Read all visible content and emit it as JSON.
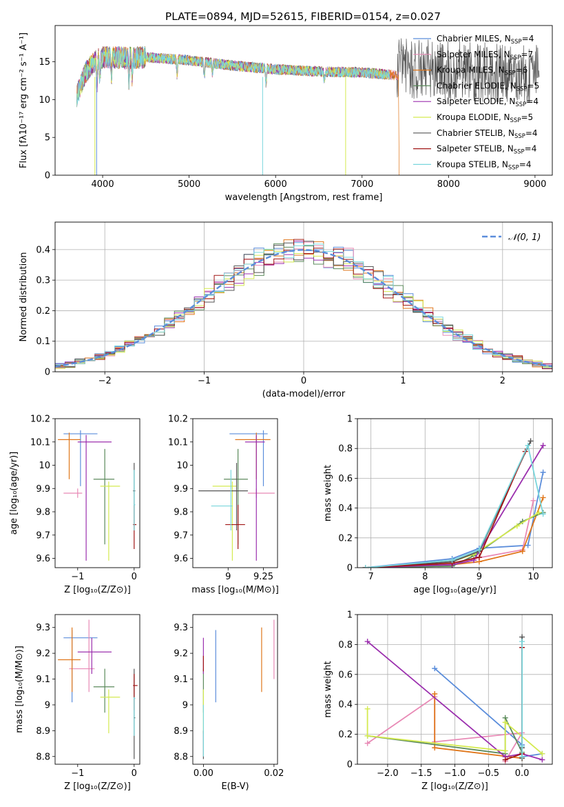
{
  "figure": {
    "title": "PLATE=0894, MJD=52615, FIBERID=0154, z=0.027"
  },
  "series_styles": [
    {
      "name": "Chabrier MILES",
      "nssp": "4",
      "color": "#5b8ddb"
    },
    {
      "name": "Salpeter MILES",
      "nssp": "7",
      "color": "#e889b5"
    },
    {
      "name": "Kroupa MILES",
      "nssp": "6",
      "color": "#e0761a"
    },
    {
      "name": "Chabrier ELODIE",
      "nssp": "5",
      "color": "#5b8a5b"
    },
    {
      "name": "Salpeter ELODIE",
      "nssp": "4",
      "color": "#9b2fae"
    },
    {
      "name": "Kroupa ELODIE",
      "nssp": "5",
      "color": "#d4ea4f"
    },
    {
      "name": "Chabrier STELIB",
      "nssp": "4",
      "color": "#555555"
    },
    {
      "name": "Salpeter STELIB",
      "nssp": "4",
      "color": "#a01515"
    },
    {
      "name": "Kroupa STELIB",
      "nssp": "4",
      "color": "#79d6dc"
    }
  ],
  "chart_data": [
    {
      "id": "spectrum",
      "type": "line",
      "xlabel": "wavelength [Angstrom, rest frame]",
      "ylabel": "Flux [fλ10⁻¹⁷ erg cm⁻² s⁻¹ A⁻¹]",
      "xlim": [
        3450,
        9200
      ],
      "ylim": [
        0,
        19.8
      ],
      "xticks": [
        4000,
        5000,
        6000,
        7000,
        8000,
        9000
      ],
      "yticks": [
        0,
        5,
        10,
        15
      ],
      "legend_position": "top-right",
      "continuum": {
        "x": [
          3700,
          3800,
          3900,
          4000,
          4100,
          4300,
          4500,
          5000,
          5500,
          6000,
          6500,
          7000,
          7400
        ],
        "y": [
          10.5,
          13.5,
          15.0,
          15.6,
          15.6,
          15.5,
          15.6,
          15.2,
          14.5,
          14.0,
          13.7,
          13.6,
          13.2
        ]
      }
    },
    {
      "id": "residuals",
      "type": "histogram",
      "xlabel": "(data-model)/error",
      "ylabel": "Normed distribution",
      "xlim": [
        -2.5,
        2.5
      ],
      "ylim": [
        0,
        0.49
      ],
      "xticks": [
        -2,
        -1,
        0,
        1,
        2
      ],
      "yticks": [
        0,
        0.1,
        0.2,
        0.3,
        0.4
      ],
      "grid": true,
      "bin_width": 0.1,
      "reference_curve": {
        "name": "𝒩(0, 1)",
        "style": "dashed",
        "color": "#5b8ddb",
        "mean": 0,
        "sigma": 1
      },
      "legend_position": "top-right"
    },
    {
      "id": "age-vs-Z",
      "type": "errorbar",
      "xlabel": "Z [log₁₀(Z/Z⊙)]",
      "ylabel": "age  [log₁₀(age/yr)]",
      "xlim": [
        -1.4,
        0.1
      ],
      "ylim": [
        9.56,
        10.2
      ],
      "xticks": [
        -1,
        0
      ],
      "yticks": [
        9.6,
        9.7,
        9.8,
        9.9,
        10.0,
        10.1,
        10.2
      ],
      "points": [
        {
          "s": 0,
          "x": -0.95,
          "xe": [
            -1.25,
            -0.65
          ],
          "y": 10.135,
          "ye": [
            9.91,
            10.15
          ]
        },
        {
          "s": 1,
          "x": -1.0,
          "xe": [
            -1.25,
            -0.92
          ],
          "y": 9.88,
          "ye": [
            9.86,
            9.9
          ]
        },
        {
          "s": 2,
          "x": -1.15,
          "xe": [
            -1.35,
            -0.95
          ],
          "y": 10.11,
          "ye": [
            9.94,
            10.14
          ]
        },
        {
          "s": 3,
          "x": -0.52,
          "xe": [
            -0.72,
            -0.35
          ],
          "y": 9.94,
          "ye": [
            9.66,
            10.07
          ]
        },
        {
          "s": 4,
          "x": -0.85,
          "xe": [
            -1.0,
            -0.4
          ],
          "y": 10.1,
          "ye": [
            9.59,
            10.13
          ]
        },
        {
          "s": 5,
          "x": -0.45,
          "xe": [
            -0.6,
            -0.25
          ],
          "y": 9.91,
          "ye": [
            9.59,
            9.93
          ]
        },
        {
          "s": 6,
          "x": 0.0,
          "xe": [
            -0.02,
            0.02
          ],
          "y": 9.89,
          "ye": [
            9.72,
            10.01
          ]
        },
        {
          "s": 7,
          "x": 0.0,
          "xe": [
            -0.02,
            0.04
          ],
          "y": 9.745,
          "ye": [
            9.64,
            9.83
          ]
        },
        {
          "s": 8,
          "x": 0.0,
          "xe": [
            -0.01,
            0.02
          ],
          "y": 9.83,
          "ye": [
            9.72,
            9.98
          ]
        }
      ]
    },
    {
      "id": "age-vs-mass",
      "type": "errorbar",
      "xlabel": "mass [log₁₀(M/M⊙)]",
      "ylabel": "",
      "xlim": [
        8.75,
        9.35
      ],
      "ylim": [
        9.56,
        10.2
      ],
      "xticks": [
        9.0,
        9.25
      ],
      "yticks": [
        9.6,
        9.7,
        9.8,
        9.9,
        10.0,
        10.1,
        10.2
      ],
      "points": [
        {
          "s": 0,
          "x": 9.25,
          "xe": [
            9.01,
            9.28
          ],
          "y": 10.135,
          "ye": [
            9.91,
            10.15
          ]
        },
        {
          "s": 1,
          "x": 9.2,
          "xe": [
            9.14,
            9.33
          ],
          "y": 9.88,
          "ye": [
            9.86,
            9.9
          ]
        },
        {
          "s": 2,
          "x": 9.2,
          "xe": [
            9.05,
            9.3
          ],
          "y": 10.11,
          "ye": [
            9.94,
            10.14
          ]
        },
        {
          "s": 3,
          "x": 9.07,
          "xe": [
            8.97,
            9.14
          ],
          "y": 9.94,
          "ye": [
            9.66,
            10.07
          ]
        },
        {
          "s": 4,
          "x": 9.2,
          "xe": [
            9.12,
            9.26
          ],
          "y": 10.1,
          "ye": [
            9.59,
            10.13
          ]
        },
        {
          "s": 5,
          "x": 9.03,
          "xe": [
            8.89,
            9.06
          ],
          "y": 9.91,
          "ye": [
            9.59,
            9.93
          ]
        },
        {
          "s": 6,
          "x": 9.06,
          "xe": [
            8.79,
            9.14
          ],
          "y": 9.89,
          "ye": [
            9.72,
            10.01
          ]
        },
        {
          "s": 7,
          "x": 9.07,
          "xe": [
            8.98,
            9.12
          ],
          "y": 9.745,
          "ye": [
            9.64,
            9.83
          ]
        },
        {
          "s": 8,
          "x": 9.02,
          "xe": [
            8.88,
            9.03
          ],
          "y": 9.825,
          "ye": [
            9.72,
            9.98
          ]
        }
      ]
    },
    {
      "id": "weight-vs-age",
      "type": "line",
      "xlabel": "age  [log₁₀(age/yr)]",
      "ylabel": "mass weight",
      "xlim": [
        6.75,
        10.35
      ],
      "ylim": [
        0,
        1.0
      ],
      "xticks": [
        7,
        8,
        9,
        10
      ],
      "yticks": [
        0,
        0.2,
        0.4,
        0.6,
        0.8,
        1.0
      ],
      "grid": true,
      "series": [
        {
          "s": 0,
          "x": [
            6.9,
            8.5,
            9.0,
            9.9,
            10.18
          ],
          "y": [
            0.0,
            0.06,
            0.13,
            0.15,
            0.64
          ]
        },
        {
          "s": 1,
          "x": [
            6.9,
            8.5,
            8.9,
            9.8,
            10.0
          ],
          "y": [
            0.0,
            0.02,
            0.06,
            0.12,
            0.45
          ]
        },
        {
          "s": 2,
          "x": [
            6.9,
            8.5,
            9.0,
            9.8,
            10.18
          ],
          "y": [
            0.0,
            0.02,
            0.04,
            0.11,
            0.47
          ]
        },
        {
          "s": 3,
          "x": [
            6.9,
            8.5,
            8.9,
            9.8,
            10.18
          ],
          "y": [
            0.0,
            0.01,
            0.08,
            0.31,
            0.37
          ]
        },
        {
          "s": 4,
          "x": [
            6.9,
            8.5,
            8.9,
            10.18
          ],
          "y": [
            0.0,
            0.02,
            0.05,
            0.82
          ]
        },
        {
          "s": 5,
          "x": [
            6.9,
            8.5,
            8.9,
            9.7,
            10.1
          ],
          "y": [
            0.0,
            0.04,
            0.09,
            0.28,
            0.37
          ]
        },
        {
          "s": 6,
          "x": [
            6.9,
            8.5,
            9.0,
            9.95
          ],
          "y": [
            0.0,
            0.04,
            0.11,
            0.85
          ]
        },
        {
          "s": 7,
          "x": [
            6.9,
            8.5,
            9.0,
            9.85
          ],
          "y": [
            0.0,
            0.03,
            0.07,
            0.78
          ]
        },
        {
          "s": 8,
          "x": [
            6.9,
            8.5,
            9.0,
            9.9,
            10.18
          ],
          "y": [
            0.0,
            0.05,
            0.12,
            0.82,
            0.36
          ]
        }
      ]
    },
    {
      "id": "mass-vs-Z",
      "type": "errorbar",
      "xlabel": "Z [log₁₀(Z/Z⊙)]",
      "ylabel": "mass [log₁₀(M/M⊙)]",
      "xlim": [
        -1.4,
        0.1
      ],
      "ylim": [
        8.77,
        9.35
      ],
      "xticks": [
        -1,
        0
      ],
      "yticks": [
        8.8,
        8.9,
        9.0,
        9.1,
        9.2,
        9.3
      ],
      "points": [
        {
          "s": 0,
          "x": -1.1,
          "xe": [
            -1.25,
            -0.65
          ],
          "y": 9.26,
          "ye": [
            9.01,
            9.29
          ]
        },
        {
          "s": 1,
          "x": -0.8,
          "xe": [
            -1.15,
            -0.7
          ],
          "y": 9.14,
          "ye": [
            9.05,
            9.33
          ]
        },
        {
          "s": 2,
          "x": -1.1,
          "xe": [
            -1.35,
            -0.95
          ],
          "y": 9.175,
          "ye": [
            9.05,
            9.3
          ]
        },
        {
          "s": 3,
          "x": -0.52,
          "xe": [
            -0.72,
            -0.35
          ],
          "y": 9.07,
          "ye": [
            8.97,
            9.14
          ]
        },
        {
          "s": 4,
          "x": -0.75,
          "xe": [
            -1.0,
            -0.4
          ],
          "y": 9.205,
          "ye": [
            9.12,
            9.26
          ]
        },
        {
          "s": 5,
          "x": -0.45,
          "xe": [
            -0.6,
            -0.25
          ],
          "y": 9.03,
          "ye": [
            8.89,
            9.06
          ]
        },
        {
          "s": 6,
          "x": 0.0,
          "xe": [
            -0.01,
            0.02
          ],
          "y": 8.95,
          "ye": [
            8.79,
            9.14
          ]
        },
        {
          "s": 7,
          "x": 0.0,
          "xe": [
            -0.02,
            0.06
          ],
          "y": 9.075,
          "ye": [
            8.98,
            9.12
          ]
        },
        {
          "s": 8,
          "x": 0.0,
          "xe": [
            -0.01,
            0.02
          ],
          "y": 9.025,
          "ye": [
            8.88,
            9.03
          ]
        }
      ]
    },
    {
      "id": "mass-vs-ebv",
      "type": "errorbar",
      "xlabel": "E(B-V)",
      "ylabel": "",
      "xlim": [
        -0.003,
        0.021
      ],
      "ylim": [
        8.77,
        9.35
      ],
      "xticks": [
        0.0,
        0.02
      ],
      "xtick_labels": [
        "0.00",
        "0.02"
      ],
      "yticks": [
        8.8,
        8.9,
        9.0,
        9.1,
        9.2,
        9.3
      ],
      "points": [
        {
          "s": 0,
          "x": 0.0035,
          "y": 9.15,
          "ye": [
            9.01,
            9.29
          ]
        },
        {
          "s": 1,
          "x": 0.02,
          "y": 9.22,
          "ye": [
            9.1,
            9.33
          ]
        },
        {
          "s": 2,
          "x": 0.0165,
          "y": 9.175,
          "ye": [
            9.05,
            9.3
          ]
        },
        {
          "s": 3,
          "x": 0.0,
          "y": 9.07,
          "ye": [
            8.97,
            9.14
          ]
        },
        {
          "s": 4,
          "x": 0.0,
          "y": 9.2,
          "ye": [
            9.12,
            9.26
          ]
        },
        {
          "s": 5,
          "x": 0.0,
          "y": 9.03,
          "ye": [
            8.89,
            9.06
          ]
        },
        {
          "s": 6,
          "x": 0.0,
          "y": 8.85,
          "ye": [
            8.79,
            8.9
          ]
        },
        {
          "s": 7,
          "x": 0.0,
          "y": 9.16,
          "ye": [
            9.13,
            9.19
          ]
        },
        {
          "s": 8,
          "x": 0.0,
          "y": 8.95,
          "ye": [
            8.8,
            9.0
          ]
        }
      ]
    },
    {
      "id": "weight-vs-Z",
      "type": "line",
      "xlabel": "Z [log₁₀(Z/Z⊙)]",
      "ylabel": "mass weight",
      "xlim": [
        -2.45,
        0.45
      ],
      "ylim": [
        0,
        1.0
      ],
      "xticks": [
        -2.0,
        -1.5,
        -1.0,
        -0.5,
        0.0
      ],
      "xtick_labels": [
        "−2.0",
        "−1.5",
        "−1.0",
        "−0.5",
        "0.0"
      ],
      "yticks": [
        0,
        0.2,
        0.4,
        0.6,
        0.8,
        1.0
      ],
      "grid": true,
      "series": [
        {
          "s": 0,
          "x": [
            -1.3,
            0.0,
            0.0,
            0.3
          ],
          "y": [
            0.64,
            0.13,
            0.05,
            0.07
          ]
        },
        {
          "s": 1,
          "x": [
            -2.3,
            -1.3,
            -1.3,
            0.0,
            -0.25
          ],
          "y": [
            0.14,
            0.45,
            0.15,
            0.21,
            0.02
          ]
        },
        {
          "s": 2,
          "x": [
            -1.3,
            -1.3,
            0.0
          ],
          "y": [
            0.47,
            0.11,
            0.04
          ]
        },
        {
          "s": 3,
          "x": [
            -2.3,
            -0.25,
            -0.25,
            0.0
          ],
          "y": [
            0.19,
            0.07,
            0.31,
            0.08
          ]
        },
        {
          "s": 4,
          "x": [
            -2.3,
            -0.25,
            0.0,
            0.3
          ],
          "y": [
            0.82,
            0.05,
            0.07,
            0.03
          ]
        },
        {
          "s": 5,
          "x": [
            -2.3,
            -2.3,
            -0.25,
            -0.25,
            0.3
          ],
          "y": [
            0.37,
            0.19,
            0.09,
            0.28,
            0.07
          ]
        },
        {
          "s": 6,
          "x": [
            0.0,
            0.0,
            0.0
          ],
          "y": [
            0.85,
            0.11,
            0.04
          ]
        },
        {
          "s": 7,
          "x": [
            -0.25,
            0.0,
            0.0
          ],
          "y": [
            0.03,
            0.07,
            0.78
          ]
        },
        {
          "s": 8,
          "x": [
            0.0,
            0.0,
            0.0
          ],
          "y": [
            0.82,
            0.12,
            0.05
          ]
        }
      ]
    }
  ]
}
